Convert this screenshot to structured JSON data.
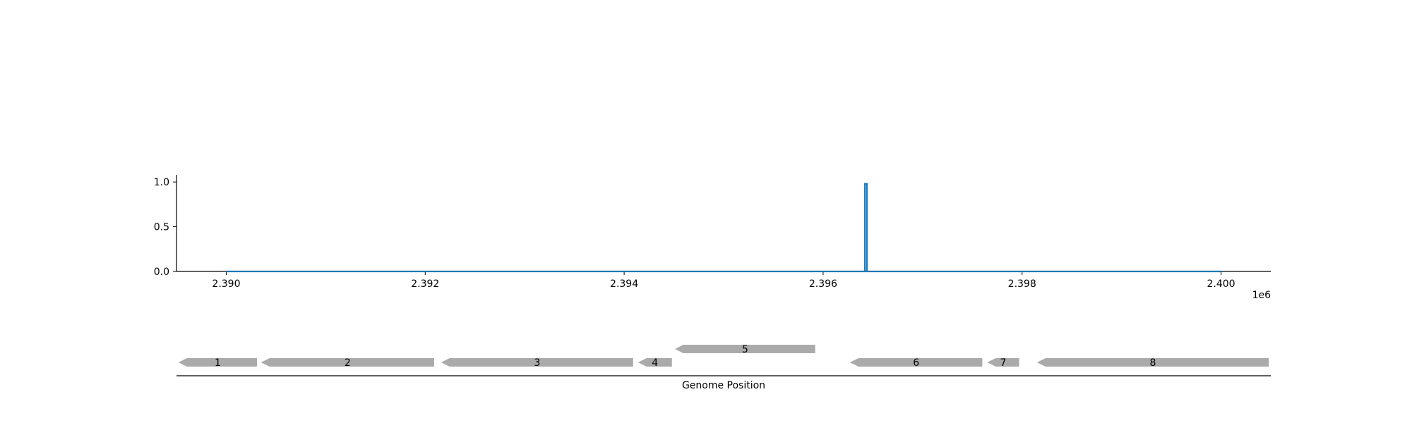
{
  "chart_data": {
    "type": "line",
    "title": "",
    "xlabel": "Genome Position",
    "ylabel": "",
    "x_offset_label": "1e6",
    "xlim": [
      2389500,
      2400500
    ],
    "ylim": [
      0,
      1.08
    ],
    "x_ticks": [
      2390000,
      2392000,
      2394000,
      2396000,
      2398000,
      2400000
    ],
    "x_tick_labels": [
      "2.390",
      "2.392",
      "2.394",
      "2.396",
      "2.398",
      "2.400"
    ],
    "y_ticks": [
      0.0,
      0.5,
      1.0
    ],
    "y_tick_labels": [
      "0.0",
      "0.5",
      "1.0"
    ],
    "grid": false,
    "series": [
      {
        "color": "#1f77b4",
        "x": [
          2390000,
          2396420,
          2396420,
          2396440,
          2396440,
          2400000
        ],
        "y": [
          0,
          0,
          0.98,
          0.98,
          0,
          0
        ]
      }
    ],
    "genes": {
      "color": "#aaaaaa",
      "strand": "reverse",
      "items": [
        {
          "label": "1",
          "start": 2389520,
          "end": 2390310,
          "row": 0
        },
        {
          "label": "2",
          "start": 2390350,
          "end": 2392090,
          "row": 0
        },
        {
          "label": "3",
          "start": 2392160,
          "end": 2394090,
          "row": 0
        },
        {
          "label": "4",
          "start": 2394140,
          "end": 2394480,
          "row": 0
        },
        {
          "label": "5",
          "start": 2394510,
          "end": 2395920,
          "row": 1
        },
        {
          "label": "6",
          "start": 2396270,
          "end": 2397600,
          "row": 0
        },
        {
          "label": "7",
          "start": 2397650,
          "end": 2397970,
          "row": 0
        },
        {
          "label": "8",
          "start": 2398150,
          "end": 2400480,
          "row": 0
        }
      ]
    }
  }
}
